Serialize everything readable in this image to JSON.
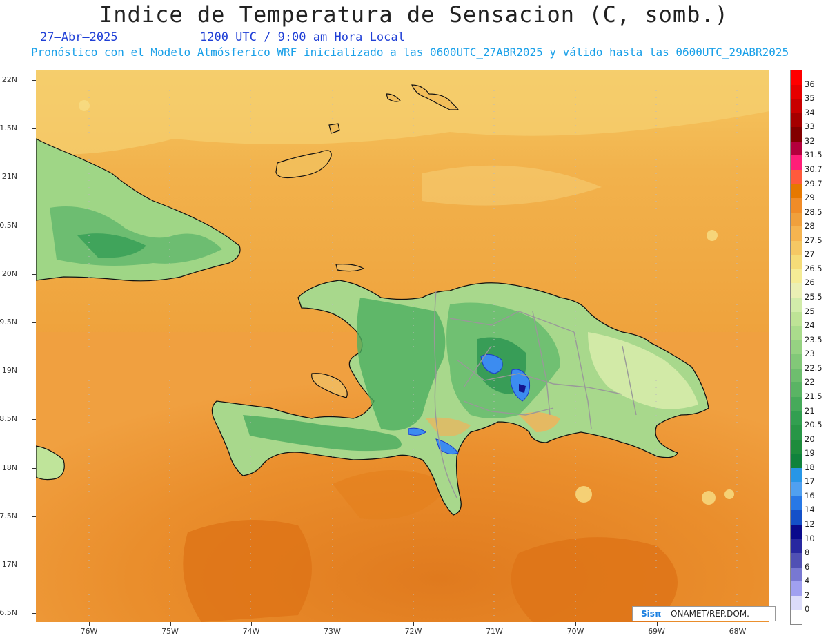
{
  "header": {
    "title": "Indice de Temperatura de Sensacion (C, somb.)",
    "date": "27–Abr–2025",
    "time": "1200 UTC / 9:00 am Hora Local",
    "model_info": "Pronóstico con el Modelo Atmósferico WRF inicializado a las 0600UTC_27ABR2025 y válido hasta las  0600UTC_29ABR2025"
  },
  "axes": {
    "lat_labels": [
      "22N",
      "1.5N",
      "21N",
      "0.5N",
      "20N",
      "9.5N",
      "19N",
      "8.5N",
      "18N",
      "7.5N",
      "17N",
      "6.5N"
    ],
    "lon_labels": [
      "76W",
      "75W",
      "74W",
      "73W",
      "72W",
      "71W",
      "70W",
      "69W",
      "68W"
    ]
  },
  "colorbar": {
    "labels": [
      "36",
      "35",
      "34",
      "33",
      "32",
      "31.5",
      "30.7",
      "29.7",
      "29",
      "28.5",
      "28",
      "27.5",
      "27",
      "26.5",
      "26",
      "25.5",
      "25",
      "24",
      "23.5",
      "23",
      "22.5",
      "22",
      "21.5",
      "21",
      "20.5",
      "20",
      "19",
      "18",
      "17",
      "16",
      "14",
      "12",
      "10",
      "8",
      "6",
      "4",
      "2",
      "0"
    ],
    "colors": [
      "#ff0000",
      "#e60000",
      "#c80000",
      "#a50000",
      "#820000",
      "#b4003c",
      "#ff1e78",
      "#ff5a3c",
      "#e67800",
      "#f08c28",
      "#f0a03c",
      "#f5b450",
      "#f5c864",
      "#f5dc78",
      "#f5ec96",
      "#ebf0b4",
      "#d2ecaa",
      "#beE396",
      "#aadc8c",
      "#96d282",
      "#82c878",
      "#6ebe6e",
      "#5ab464",
      "#46aa5a",
      "#329f50",
      "#289646",
      "#1e8c3c",
      "#10823c",
      "#2896e6",
      "#50a0f0",
      "#2878e6",
      "#1450c8",
      "#0a0a8c",
      "#2828a0",
      "#5050b4",
      "#7878d2",
      "#a0a0f0",
      "#dcdcfa",
      "#ffffff"
    ]
  },
  "credit": {
    "sis": "Sisπ",
    "text": "– ONAMET/REP.DOM."
  }
}
